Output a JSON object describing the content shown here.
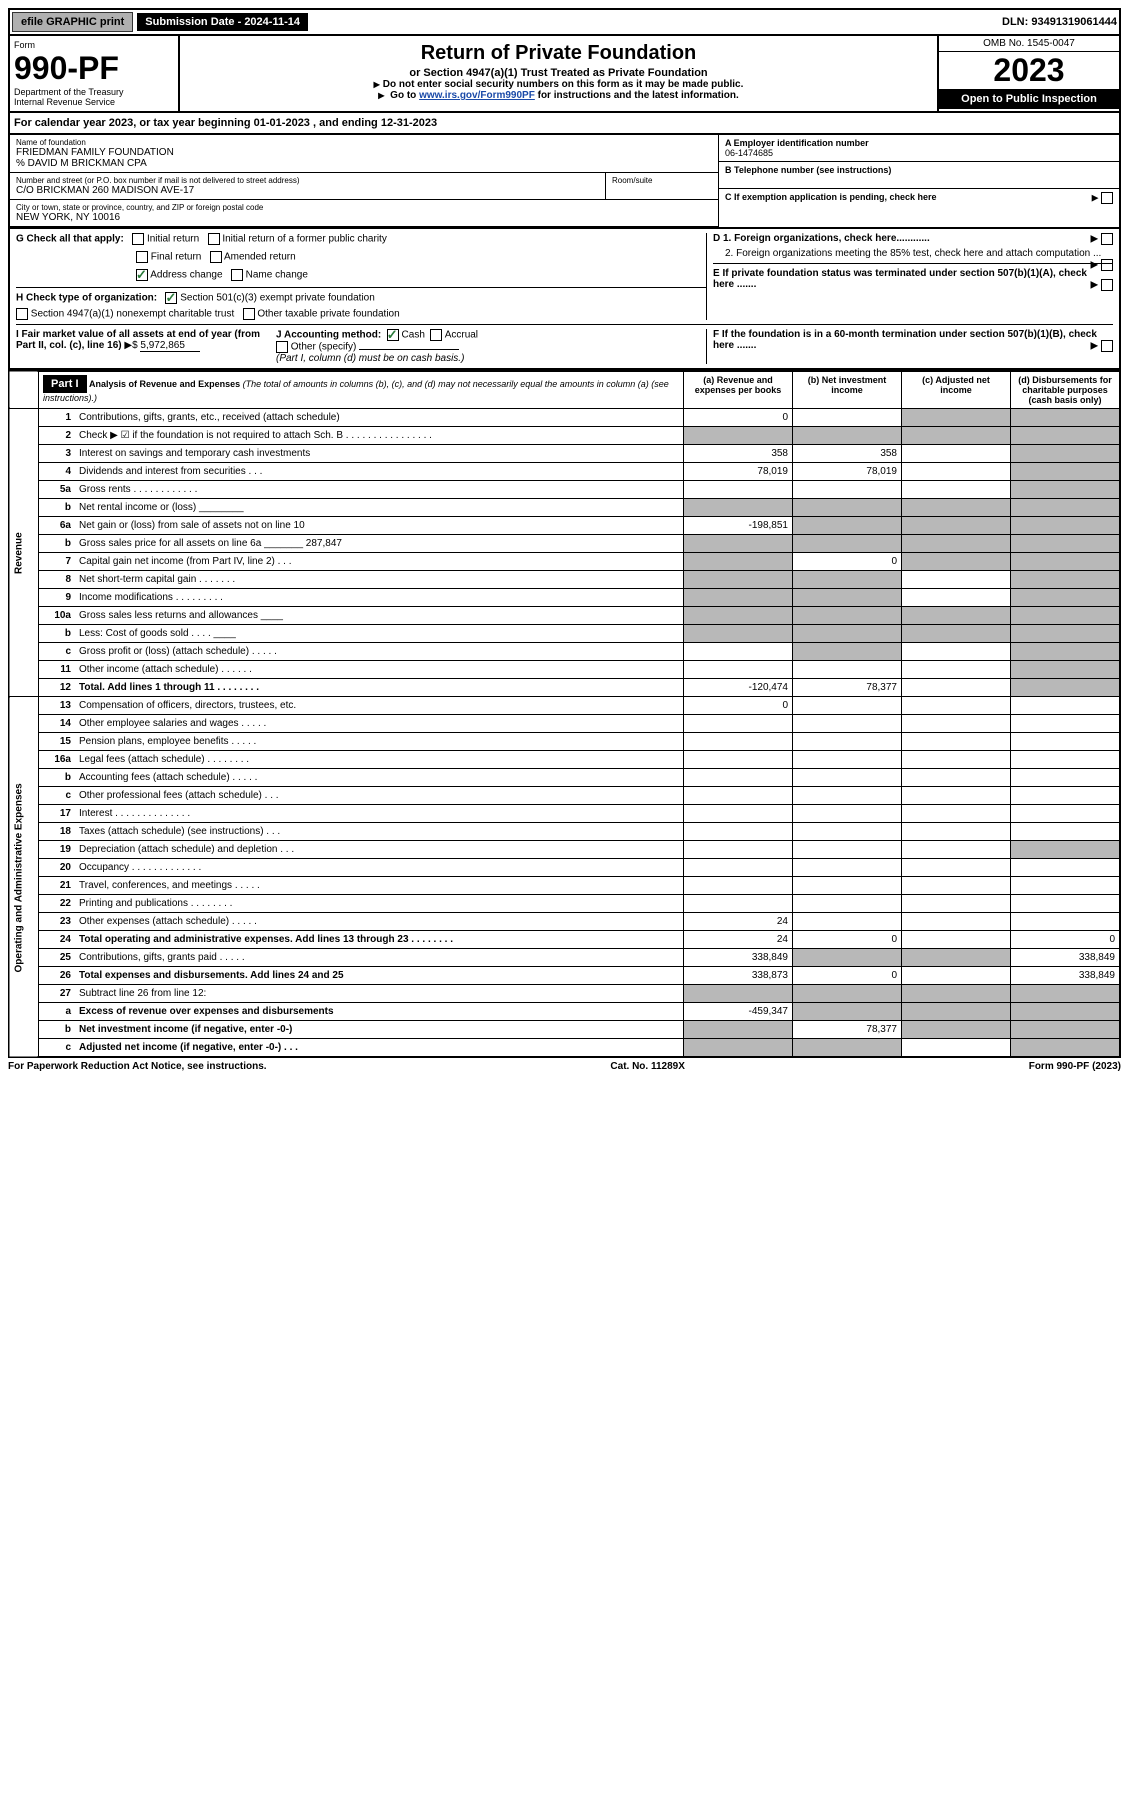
{
  "topbar": {
    "efile": "efile GRAPHIC print",
    "subdate_label": "Submission Date - 2024-11-14",
    "dln": "DLN: 93491319061444"
  },
  "header": {
    "form_label": "Form",
    "form_num": "990-PF",
    "dept": "Department of the Treasury",
    "irs": "Internal Revenue Service",
    "title": "Return of Private Foundation",
    "subtitle": "or Section 4947(a)(1) Trust Treated as Private Foundation",
    "note1": "Do not enter social security numbers on this form as it may be made public.",
    "note2_pre": "Go to ",
    "note2_link": "www.irs.gov/Form990PF",
    "note2_post": " for instructions and the latest information.",
    "omb": "OMB No. 1545-0047",
    "year": "2023",
    "open": "Open to Public Inspection"
  },
  "calyear": {
    "text_pre": "For calendar year 2023, or tax year beginning ",
    "begin": "01-01-2023",
    "mid": " , and ending ",
    "end": "12-31-2023"
  },
  "info": {
    "name_label": "Name of foundation",
    "name": "FRIEDMAN FAMILY FOUNDATION",
    "care_of": "% DAVID M BRICKMAN CPA",
    "addr_label": "Number and street (or P.O. box number if mail is not delivered to street address)",
    "addr": "C/O BRICKMAN 260 MADISON AVE-17",
    "room_label": "Room/suite",
    "city_label": "City or town, state or province, country, and ZIP or foreign postal code",
    "city": "NEW YORK, NY  10016",
    "a_label": "A Employer identification number",
    "a_val": "06-1474685",
    "b_label": "B Telephone number (see instructions)",
    "c_label": "C If exemption application is pending, check here",
    "d1": "D 1. Foreign organizations, check here............",
    "d2": "2. Foreign organizations meeting the 85% test, check here and attach computation ...",
    "e": "E  If private foundation status was terminated under section 507(b)(1)(A), check here .......",
    "f": "F  If the foundation is in a 60-month termination under section 507(b)(1)(B), check here .......",
    "g_label": "G Check all that apply:",
    "g_initial": "Initial return",
    "g_initial_pc": "Initial return of a former public charity",
    "g_final": "Final return",
    "g_amended": "Amended return",
    "g_addr": "Address change",
    "g_name": "Name change",
    "h_label": "H Check type of organization:",
    "h_501": "Section 501(c)(3) exempt private foundation",
    "h_4947": "Section 4947(a)(1) nonexempt charitable trust",
    "h_other": "Other taxable private foundation",
    "i_label": "I Fair market value of all assets at end of year (from Part II, col. (c), line 16)",
    "i_val": "5,972,865",
    "j_label": "J Accounting method:",
    "j_cash": "Cash",
    "j_accrual": "Accrual",
    "j_other": "Other (specify)",
    "j_note": "(Part I, column (d) must be on cash basis.)"
  },
  "part1": {
    "label": "Part I",
    "title": "Analysis of Revenue and Expenses",
    "subtitle": "(The total of amounts in columns (b), (c), and (d) may not necessarily equal the amounts in column (a) (see instructions).)",
    "col_a": "(a) Revenue and expenses per books",
    "col_b": "(b) Net investment income",
    "col_c": "(c) Adjusted net income",
    "col_d": "(d) Disbursements for charitable purposes (cash basis only)",
    "side_rev": "Revenue",
    "side_exp": "Operating and Administrative Expenses"
  },
  "rows": [
    {
      "n": "1",
      "desc": "Contributions, gifts, grants, etc., received (attach schedule)",
      "a": "0",
      "b": "",
      "c": "",
      "d": "",
      "shade_c": true,
      "shade_d": true
    },
    {
      "n": "2",
      "desc": "Check ▶ ☑ if the foundation is not required to attach Sch. B  . . . . . . . . . . . . . . . .",
      "a": "",
      "b": "",
      "c": "",
      "d": "",
      "shade_a": true,
      "shade_b": true,
      "shade_c": true,
      "shade_d": true
    },
    {
      "n": "3",
      "desc": "Interest on savings and temporary cash investments",
      "a": "358",
      "b": "358",
      "c": "",
      "d": "",
      "shade_d": true
    },
    {
      "n": "4",
      "desc": "Dividends and interest from securities  . . .",
      "a": "78,019",
      "b": "78,019",
      "c": "",
      "d": "",
      "shade_d": true
    },
    {
      "n": "5a",
      "desc": "Gross rents  . . . . . . . . . . . .",
      "a": "",
      "b": "",
      "c": "",
      "d": "",
      "shade_d": true
    },
    {
      "n": "b",
      "desc": "Net rental income or (loss) ________",
      "a": "",
      "b": "",
      "c": "",
      "d": "",
      "shade_a": true,
      "shade_b": true,
      "shade_c": true,
      "shade_d": true
    },
    {
      "n": "6a",
      "desc": "Net gain or (loss) from sale of assets not on line 10",
      "a": "-198,851",
      "b": "",
      "c": "",
      "d": "",
      "shade_b": true,
      "shade_c": true,
      "shade_d": true
    },
    {
      "n": "b",
      "desc": "Gross sales price for all assets on line 6a _______ 287,847",
      "a": "",
      "b": "",
      "c": "",
      "d": "",
      "shade_a": true,
      "shade_b": true,
      "shade_c": true,
      "shade_d": true
    },
    {
      "n": "7",
      "desc": "Capital gain net income (from Part IV, line 2)  . . .",
      "a": "",
      "b": "0",
      "c": "",
      "d": "",
      "shade_a": true,
      "shade_c": true,
      "shade_d": true
    },
    {
      "n": "8",
      "desc": "Net short-term capital gain  . . . . . . .",
      "a": "",
      "b": "",
      "c": "",
      "d": "",
      "shade_a": true,
      "shade_b": true,
      "shade_d": true
    },
    {
      "n": "9",
      "desc": "Income modifications . . . . . . . . .",
      "a": "",
      "b": "",
      "c": "",
      "d": "",
      "shade_a": true,
      "shade_b": true,
      "shade_d": true
    },
    {
      "n": "10a",
      "desc": "Gross sales less returns and allowances ____",
      "a": "",
      "b": "",
      "c": "",
      "d": "",
      "shade_a": true,
      "shade_b": true,
      "shade_c": true,
      "shade_d": true
    },
    {
      "n": "b",
      "desc": "Less: Cost of goods sold  . . . . ____",
      "a": "",
      "b": "",
      "c": "",
      "d": "",
      "shade_a": true,
      "shade_b": true,
      "shade_c": true,
      "shade_d": true
    },
    {
      "n": "c",
      "desc": "Gross profit or (loss) (attach schedule)  . . . . .",
      "a": "",
      "b": "",
      "c": "",
      "d": "",
      "shade_b": true,
      "shade_d": true
    },
    {
      "n": "11",
      "desc": "Other income (attach schedule)  . . . . . .",
      "a": "",
      "b": "",
      "c": "",
      "d": "",
      "shade_d": true
    },
    {
      "n": "12",
      "desc": "Total. Add lines 1 through 11  . . . . . . . .",
      "a": "-120,474",
      "b": "78,377",
      "c": "",
      "d": "",
      "bold": true,
      "shade_d": true
    },
    {
      "n": "13",
      "desc": "Compensation of officers, directors, trustees, etc.",
      "a": "0",
      "b": "",
      "c": "",
      "d": ""
    },
    {
      "n": "14",
      "desc": "Other employee salaries and wages  . . . . .",
      "a": "",
      "b": "",
      "c": "",
      "d": ""
    },
    {
      "n": "15",
      "desc": "Pension plans, employee benefits . . . . .",
      "a": "",
      "b": "",
      "c": "",
      "d": ""
    },
    {
      "n": "16a",
      "desc": "Legal fees (attach schedule) . . . . . . . .",
      "a": "",
      "b": "",
      "c": "",
      "d": ""
    },
    {
      "n": "b",
      "desc": "Accounting fees (attach schedule) . . . . .",
      "a": "",
      "b": "",
      "c": "",
      "d": ""
    },
    {
      "n": "c",
      "desc": "Other professional fees (attach schedule)  . . .",
      "a": "",
      "b": "",
      "c": "",
      "d": ""
    },
    {
      "n": "17",
      "desc": "Interest . . . . . . . . . . . . . .",
      "a": "",
      "b": "",
      "c": "",
      "d": ""
    },
    {
      "n": "18",
      "desc": "Taxes (attach schedule) (see instructions)  . . .",
      "a": "",
      "b": "",
      "c": "",
      "d": ""
    },
    {
      "n": "19",
      "desc": "Depreciation (attach schedule) and depletion  . . .",
      "a": "",
      "b": "",
      "c": "",
      "d": "",
      "shade_d": true
    },
    {
      "n": "20",
      "desc": "Occupancy . . . . . . . . . . . . .",
      "a": "",
      "b": "",
      "c": "",
      "d": ""
    },
    {
      "n": "21",
      "desc": "Travel, conferences, and meetings . . . . .",
      "a": "",
      "b": "",
      "c": "",
      "d": ""
    },
    {
      "n": "22",
      "desc": "Printing and publications . . . . . . . .",
      "a": "",
      "b": "",
      "c": "",
      "d": ""
    },
    {
      "n": "23",
      "desc": "Other expenses (attach schedule) . . . . .",
      "a": "24",
      "b": "",
      "c": "",
      "d": ""
    },
    {
      "n": "24",
      "desc": "Total operating and administrative expenses. Add lines 13 through 23  . . . . . . . .",
      "a": "24",
      "b": "0",
      "c": "",
      "d": "0",
      "bold": true
    },
    {
      "n": "25",
      "desc": "Contributions, gifts, grants paid  . . . . .",
      "a": "338,849",
      "b": "",
      "c": "",
      "d": "338,849",
      "shade_b": true,
      "shade_c": true
    },
    {
      "n": "26",
      "desc": "Total expenses and disbursements. Add lines 24 and 25",
      "a": "338,873",
      "b": "0",
      "c": "",
      "d": "338,849",
      "bold": true
    },
    {
      "n": "27",
      "desc": "Subtract line 26 from line 12:",
      "a": "",
      "b": "",
      "c": "",
      "d": "",
      "shade_a": true,
      "shade_b": true,
      "shade_c": true,
      "shade_d": true
    },
    {
      "n": "a",
      "desc": "Excess of revenue over expenses and disbursements",
      "a": "-459,347",
      "b": "",
      "c": "",
      "d": "",
      "bold": true,
      "shade_b": true,
      "shade_c": true,
      "shade_d": true
    },
    {
      "n": "b",
      "desc": "Net investment income (if negative, enter -0-)",
      "a": "",
      "b": "78,377",
      "c": "",
      "d": "",
      "bold": true,
      "shade_a": true,
      "shade_c": true,
      "shade_d": true
    },
    {
      "n": "c",
      "desc": "Adjusted net income (if negative, enter -0-)  . . .",
      "a": "",
      "b": "",
      "c": "",
      "d": "",
      "bold": true,
      "shade_a": true,
      "shade_b": true,
      "shade_d": true
    }
  ],
  "footer": {
    "left": "For Paperwork Reduction Act Notice, see instructions.",
    "center": "Cat. No. 11289X",
    "right": "Form 990-PF (2023)"
  }
}
